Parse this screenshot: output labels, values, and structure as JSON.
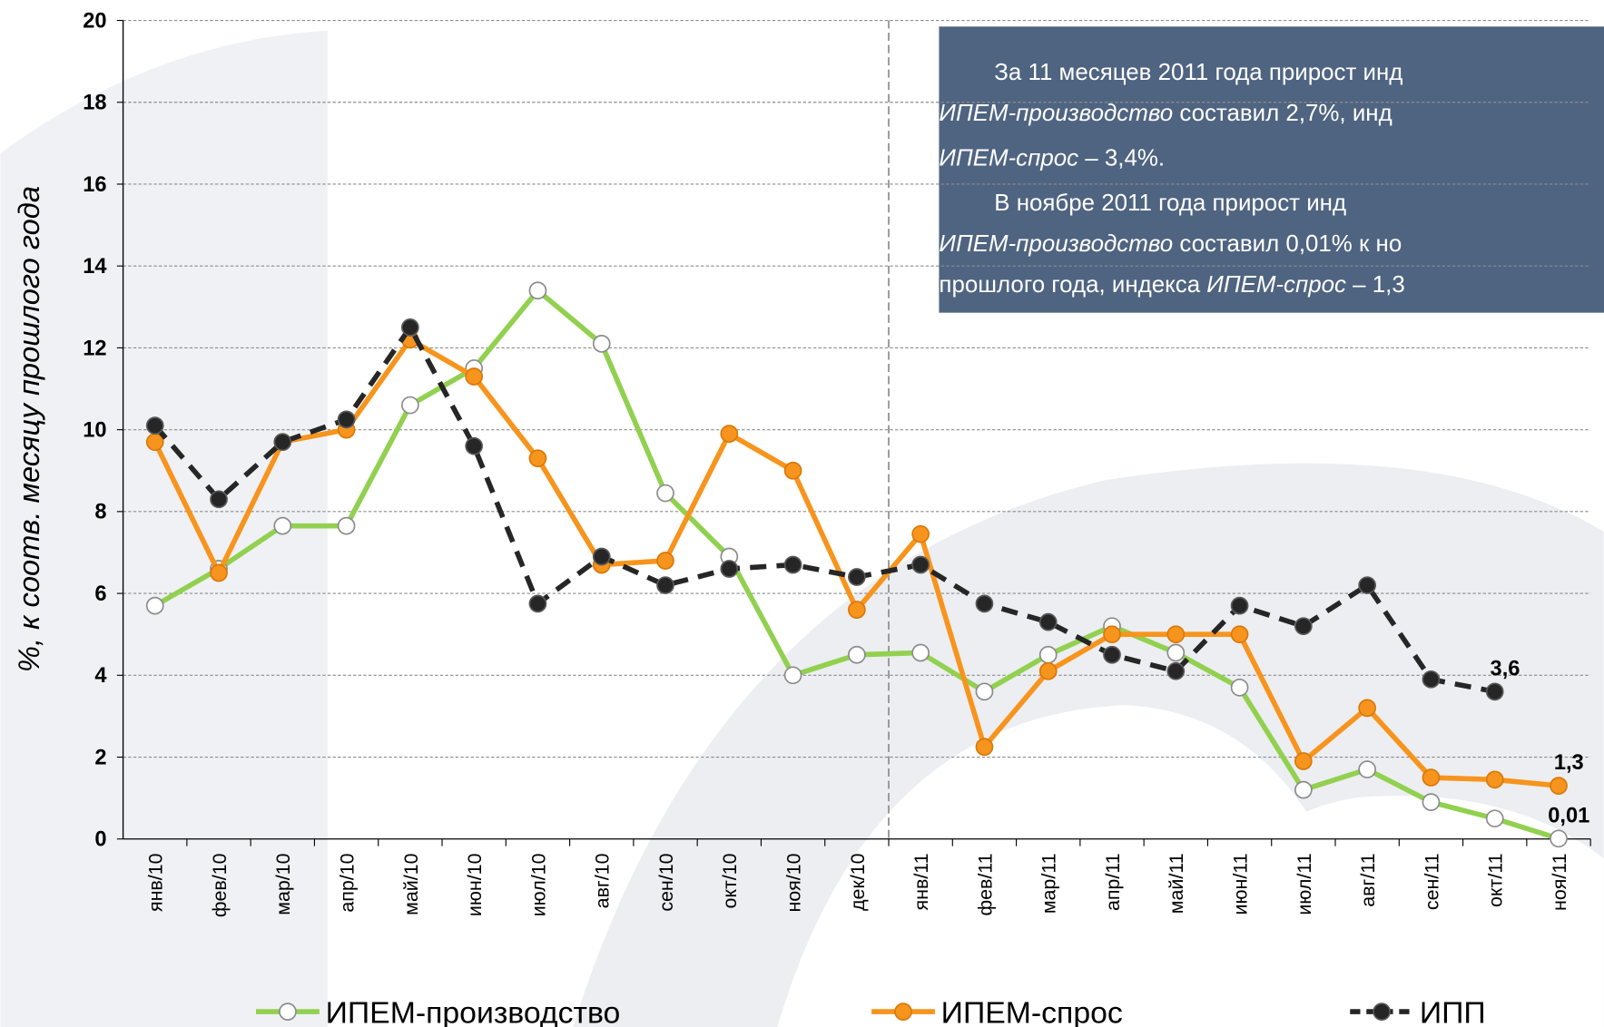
{
  "chart_data": {
    "type": "line",
    "y_label": "%, к соотв. месяцу прошлого года",
    "categories": [
      "янв/10",
      "фев/10",
      "мар/10",
      "апр/10",
      "май/10",
      "июн/10",
      "июл/10",
      "авг/10",
      "сен/10",
      "окт/10",
      "ноя/10",
      "дек/10",
      "янв/11",
      "фев/11",
      "мар/11",
      "апр/11",
      "май/11",
      "июн/11",
      "июл/11",
      "авг/11",
      "сен/11",
      "окт/11",
      "ноя/11"
    ],
    "ylim": [
      0,
      20
    ],
    "yticks": [
      0,
      2,
      4,
      6,
      8,
      10,
      12,
      14,
      16,
      18,
      20
    ],
    "grid": true,
    "legend": "bottom",
    "series": [
      {
        "name": "ИПЕМ-производство",
        "color": "#92d050",
        "marker_fill": "#ffffff",
        "marker_stroke": "#8c8c8c",
        "dashed": false,
        "values": [
          5.7,
          6.6,
          7.65,
          7.65,
          10.6,
          11.5,
          13.4,
          12.1,
          8.45,
          6.9,
          4.0,
          4.5,
          4.55,
          3.6,
          4.5,
          5.2,
          4.55,
          3.7,
          1.2,
          1.7,
          0.9,
          0.5,
          0.01
        ],
        "value_labels": [
          null,
          null,
          null,
          null,
          null,
          null,
          null,
          null,
          null,
          null,
          null,
          null,
          null,
          null,
          null,
          null,
          null,
          null,
          null,
          null,
          null,
          null,
          "0,01"
        ]
      },
      {
        "name": "ИПЕМ-спрос",
        "color": "#f7941d",
        "marker_fill": "#f7941d",
        "marker_stroke": "#d9790a",
        "dashed": false,
        "values": [
          9.7,
          6.5,
          9.7,
          10.0,
          12.2,
          11.3,
          9.3,
          6.7,
          6.8,
          9.9,
          9.0,
          5.6,
          7.45,
          2.25,
          4.1,
          5.0,
          5.0,
          5.0,
          1.9,
          3.2,
          1.5,
          1.45,
          1.3
        ],
        "value_labels": [
          null,
          null,
          null,
          null,
          null,
          null,
          null,
          null,
          null,
          null,
          null,
          null,
          null,
          null,
          null,
          null,
          null,
          null,
          null,
          null,
          null,
          null,
          "1,3"
        ]
      },
      {
        "name": "ИПП",
        "color": "#262626",
        "marker_fill": "#262626",
        "marker_stroke": "#595959",
        "dashed": true,
        "values": [
          10.1,
          8.3,
          9.7,
          10.25,
          12.5,
          9.6,
          5.75,
          6.9,
          6.2,
          6.6,
          6.7,
          6.4,
          6.7,
          5.75,
          5.3,
          4.5,
          4.1,
          5.7,
          5.2,
          6.2,
          3.9,
          3.6,
          null
        ],
        "value_labels": [
          null,
          null,
          null,
          null,
          null,
          null,
          null,
          null,
          null,
          null,
          null,
          null,
          null,
          null,
          null,
          null,
          null,
          null,
          null,
          null,
          null,
          "3,6",
          null
        ]
      }
    ],
    "annotation": [
      [
        {
          "text": "За 11 месяцев 2011 года прирост инд",
          "italic": false
        }
      ],
      [
        {
          "text": "ИПЕМ-производство",
          "italic": true
        },
        {
          "text": " составил 2,7%, инд",
          "italic": false
        }
      ],
      [
        {
          "text": "ИПЕМ-спрос",
          "italic": true
        },
        {
          "text": " – 3,4%.",
          "italic": false
        }
      ],
      [
        {
          "text": "В ноябре 2011 года прирост инд",
          "italic": false
        }
      ],
      [
        {
          "text": "ИПЕМ-производство",
          "italic": true
        },
        {
          "text": " составил 0,01% к но",
          "italic": false
        }
      ],
      [
        {
          "text": "прошлого года, индекса ",
          "italic": false
        },
        {
          "text": "ИПЕМ-спрос",
          "italic": true
        },
        {
          "text": " – 1,3",
          "italic": false
        }
      ]
    ]
  }
}
